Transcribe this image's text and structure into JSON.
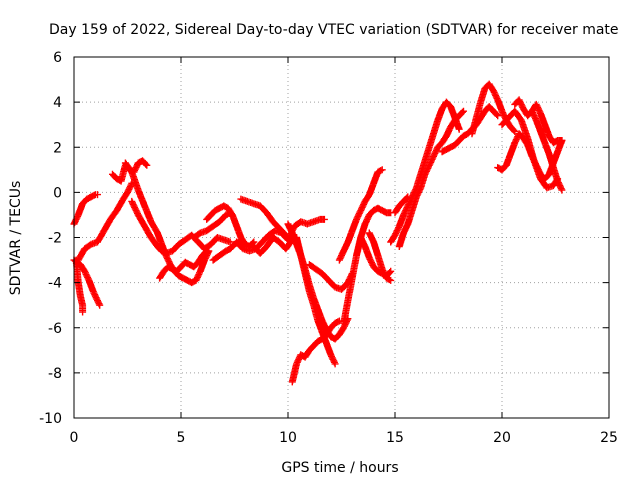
{
  "chart_data": {
    "type": "scatter",
    "title": "Day 159 of 2022, Sidereal Day-to-day VTEC variation (SDTVAR) for receiver mate",
    "xlabel": "GPS time / hours",
    "ylabel": "SDTVAR / TECUs",
    "xlim": [
      0,
      25
    ],
    "ylim": [
      -10,
      6
    ],
    "xticks": [
      0,
      5,
      10,
      15,
      20,
      25
    ],
    "yticks": [
      -10,
      -8,
      -6,
      -4,
      -2,
      0,
      2,
      4,
      6
    ],
    "xtick_labels": [
      "0",
      "5",
      "10",
      "15",
      "20",
      "25"
    ],
    "ytick_labels": [
      "-10",
      "-8",
      "-6",
      "-4",
      "-2",
      "0",
      "2",
      "4",
      "6"
    ],
    "grid": true,
    "legend": "none",
    "marker": "+",
    "color": "#ff0000",
    "series": [
      {
        "name": "s1",
        "x": [
          0.0,
          0.2,
          0.4,
          0.6,
          0.8,
          1.0,
          1.1
        ],
        "y": [
          -1.4,
          -1.0,
          -0.5,
          -0.3,
          -0.2,
          -0.1,
          -0.1
        ]
      },
      {
        "name": "s2",
        "x": [
          0.1,
          0.2,
          0.3,
          0.4,
          0.4
        ],
        "y": [
          -3.0,
          -4.0,
          -4.6,
          -5.0,
          -5.3
        ]
      },
      {
        "name": "s3",
        "x": [
          0.0,
          0.3,
          0.5,
          0.7,
          0.9,
          1.1,
          1.2
        ],
        "y": [
          -3.0,
          -3.2,
          -3.5,
          -3.9,
          -4.4,
          -4.8,
          -5.0
        ]
      },
      {
        "name": "s4",
        "x": [
          0.2,
          0.5,
          0.8,
          1.1,
          1.4,
          1.7,
          2.0,
          2.3,
          2.5,
          2.7
        ],
        "y": [
          -3.0,
          -2.5,
          -2.3,
          -2.2,
          -1.7,
          -1.2,
          -0.8,
          -0.3,
          0.0,
          0.4
        ]
      },
      {
        "name": "s5",
        "x": [
          1.8,
          2.0,
          2.2,
          2.4,
          2.6,
          2.8,
          3.0,
          3.2,
          3.4
        ],
        "y": [
          0.8,
          0.6,
          0.5,
          1.2,
          1.0,
          0.9,
          1.3,
          1.4,
          1.2
        ]
      },
      {
        "name": "s6",
        "x": [
          2.4,
          2.7,
          3.0,
          3.3,
          3.6,
          3.9,
          4.1,
          4.3,
          4.5,
          4.7,
          4.9,
          5.1,
          5.3,
          5.5,
          5.7,
          5.9,
          6.1,
          6.3
        ],
        "y": [
          1.3,
          0.9,
          0.1,
          -0.6,
          -1.3,
          -1.8,
          -2.3,
          -2.8,
          -3.2,
          -3.5,
          -3.7,
          -3.8,
          -3.9,
          -4.0,
          -3.9,
          -3.5,
          -3.0,
          -2.6
        ]
      },
      {
        "name": "s7",
        "x": [
          2.7,
          3.0,
          3.3,
          3.6,
          3.9,
          4.1,
          4.3,
          4.6,
          4.9,
          5.2,
          5.5,
          5.8,
          6.1,
          6.4,
          6.7,
          7.0,
          7.3
        ],
        "y": [
          -0.4,
          -1.0,
          -1.5,
          -2.0,
          -2.4,
          -2.6,
          -2.7,
          -2.6,
          -2.3,
          -2.1,
          -1.9,
          -2.2,
          -2.5,
          -2.3,
          -2.0,
          -2.1,
          -2.2
        ]
      },
      {
        "name": "s8",
        "x": [
          4.0,
          4.2,
          4.4,
          4.6,
          4.8,
          5.0,
          5.2,
          5.4,
          5.6,
          5.8,
          6.0,
          6.2
        ],
        "y": [
          -3.8,
          -3.5,
          -3.3,
          -3.4,
          -3.5,
          -3.3,
          -3.1,
          -3.2,
          -3.3,
          -3.1,
          -2.8,
          -2.6
        ]
      },
      {
        "name": "s9",
        "x": [
          5.6,
          5.9,
          6.2,
          6.5,
          6.8,
          7.1,
          7.3
        ],
        "y": [
          -2.0,
          -1.8,
          -1.7,
          -1.5,
          -1.3,
          -1.0,
          -0.9
        ]
      },
      {
        "name": "s10",
        "x": [
          6.2,
          6.4,
          6.6,
          6.8,
          7.0,
          7.2,
          7.4,
          7.6,
          7.8,
          8.0,
          8.2,
          8.4
        ],
        "y": [
          -1.2,
          -1.0,
          -0.8,
          -0.7,
          -0.6,
          -0.7,
          -1.0,
          -1.5,
          -2.0,
          -2.3,
          -2.4,
          -2.2
        ]
      },
      {
        "name": "s11",
        "x": [
          6.5,
          6.8,
          7.1,
          7.3,
          7.5,
          7.7,
          7.9
        ],
        "y": [
          -3.0,
          -2.8,
          -2.6,
          -2.5,
          -2.3,
          -2.2,
          -2.3
        ]
      },
      {
        "name": "s12",
        "x": [
          7.8,
          8.1,
          8.4,
          8.7,
          9.0,
          9.3,
          9.6,
          9.9
        ],
        "y": [
          -0.3,
          -0.4,
          -0.5,
          -0.6,
          -0.9,
          -1.3,
          -1.6,
          -1.9
        ]
      },
      {
        "name": "s13",
        "x": [
          7.6,
          7.9,
          8.2,
          8.5,
          8.8,
          9.1,
          9.4,
          9.7,
          10.0,
          10.3,
          10.6,
          10.9,
          11.2,
          11.5,
          11.7
        ],
        "y": [
          -2.2,
          -2.5,
          -2.6,
          -2.5,
          -2.2,
          -1.9,
          -1.7,
          -1.8,
          -2.1,
          -1.5,
          -1.3,
          -1.4,
          -1.3,
          -1.2,
          -1.2
        ]
      },
      {
        "name": "s14",
        "x": [
          8.4,
          8.7,
          9.0,
          9.3,
          9.6,
          9.9,
          10.2
        ],
        "y": [
          -2.4,
          -2.7,
          -2.4,
          -2.0,
          -2.2,
          -2.5,
          -2.1
        ]
      },
      {
        "name": "s15",
        "x": [
          10.0,
          10.2,
          10.4,
          10.6,
          10.8,
          11.0,
          11.2,
          11.4,
          11.6,
          11.8,
          12.0,
          12.2,
          12.4,
          12.6,
          12.8
        ],
        "y": [
          -1.4,
          -1.8,
          -2.3,
          -2.8,
          -3.4,
          -4.1,
          -4.7,
          -5.2,
          -5.7,
          -6.1,
          -6.4,
          -6.5,
          -6.3,
          -6.0,
          -5.6
        ]
      },
      {
        "name": "s16",
        "x": [
          10.4,
          10.6,
          10.8,
          11.0,
          11.2,
          11.4,
          11.6,
          11.8,
          12.0,
          12.1,
          12.2
        ],
        "y": [
          -2.0,
          -2.8,
          -3.6,
          -4.4,
          -5.0,
          -5.7,
          -6.2,
          -6.7,
          -7.2,
          -7.4,
          -7.6
        ]
      },
      {
        "name": "s17",
        "x": [
          10.2,
          10.4,
          10.6,
          10.8,
          11.0,
          11.2,
          11.4,
          11.6,
          11.8,
          12.0,
          12.2,
          12.4
        ],
        "y": [
          -8.4,
          -7.6,
          -7.2,
          -7.3,
          -7.0,
          -6.8,
          -6.6,
          -6.5,
          -6.3,
          -6.0,
          -5.8,
          -5.7
        ]
      },
      {
        "name": "s18",
        "x": [
          11.0,
          11.3,
          11.6,
          11.9,
          12.2,
          12.5,
          12.8,
          13.0
        ],
        "y": [
          -3.2,
          -3.4,
          -3.6,
          -3.9,
          -4.2,
          -4.3,
          -4.0,
          -3.6
        ]
      },
      {
        "name": "s19",
        "x": [
          12.4,
          12.6,
          12.8,
          13.0,
          13.2,
          13.4,
          13.6,
          13.8,
          14.0,
          14.2,
          14.4
        ],
        "y": [
          -3.0,
          -2.6,
          -2.2,
          -1.7,
          -1.2,
          -0.8,
          -0.4,
          -0.1,
          0.4,
          0.9,
          1.0
        ]
      },
      {
        "name": "s20",
        "x": [
          12.6,
          12.8,
          13.0,
          13.2,
          13.4,
          13.6,
          13.8,
          14.0,
          14.2,
          14.4,
          14.6,
          14.8
        ],
        "y": [
          -5.8,
          -4.8,
          -3.8,
          -2.8,
          -2.0,
          -1.4,
          -1.0,
          -0.8,
          -0.7,
          -0.8,
          -0.9,
          -0.9
        ]
      },
      {
        "name": "s21",
        "x": [
          13.4,
          13.6,
          13.8,
          14.0,
          14.2,
          14.4,
          14.6,
          14.8
        ],
        "y": [
          -2.0,
          -2.4,
          -2.9,
          -3.3,
          -3.5,
          -3.6,
          -3.7,
          -3.5
        ]
      },
      {
        "name": "s22",
        "x": [
          13.8,
          14.0,
          14.2,
          14.4,
          14.6,
          14.8
        ],
        "y": [
          -1.8,
          -2.2,
          -2.8,
          -3.4,
          -3.8,
          -3.9
        ]
      },
      {
        "name": "s23",
        "x": [
          14.8,
          15.0,
          15.2,
          15.4,
          15.6,
          15.8,
          16.0,
          16.2,
          16.4,
          16.6,
          16.8,
          17.0,
          17.2,
          17.4,
          17.6,
          17.8,
          18.0
        ],
        "y": [
          -2.2,
          -1.9,
          -1.5,
          -1.0,
          -0.6,
          -0.2,
          0.2,
          0.8,
          1.4,
          2.0,
          2.6,
          3.2,
          3.7,
          4.0,
          3.8,
          3.3,
          2.8
        ]
      },
      {
        "name": "s24",
        "x": [
          15.2,
          15.4,
          15.6,
          15.8,
          16.0,
          16.2,
          16.4,
          16.6,
          16.8,
          17.0,
          17.2,
          17.4,
          17.6,
          17.8,
          18.0,
          18.2
        ],
        "y": [
          -2.4,
          -1.8,
          -1.4,
          -0.8,
          -0.2,
          0.2,
          0.8,
          1.2,
          1.6,
          2.0,
          2.2,
          2.5,
          2.9,
          3.2,
          3.4,
          3.6
        ]
      },
      {
        "name": "s25",
        "x": [
          15.0,
          15.2,
          15.4,
          15.6
        ],
        "y": [
          -0.9,
          -0.6,
          -0.4,
          -0.2
        ]
      },
      {
        "name": "s26",
        "x": [
          17.2,
          17.4,
          17.6,
          17.8,
          18.0,
          18.2,
          18.4,
          18.6,
          18.8,
          19.0,
          19.2,
          19.4,
          19.6,
          19.8
        ],
        "y": [
          1.8,
          1.9,
          2.0,
          2.1,
          2.3,
          2.5,
          2.6,
          2.8,
          3.0,
          3.3,
          3.6,
          3.8,
          3.6,
          3.4
        ]
      },
      {
        "name": "s27",
        "x": [
          18.6,
          18.8,
          19.0,
          19.2,
          19.4,
          19.6,
          19.8,
          20.0,
          20.2,
          20.4,
          20.6
        ],
        "y": [
          2.6,
          3.3,
          4.0,
          4.6,
          4.8,
          4.5,
          4.1,
          3.6,
          3.2,
          2.9,
          2.7
        ]
      },
      {
        "name": "s28",
        "x": [
          19.8,
          20.0,
          20.2,
          20.4,
          20.6,
          20.8,
          21.0,
          21.2,
          21.4,
          21.6,
          21.8,
          22.0,
          22.2,
          22.4,
          22.6,
          22.8
        ],
        "y": [
          1.1,
          1.0,
          1.2,
          1.7,
          2.2,
          2.6,
          2.4,
          2.1,
          1.6,
          1.2,
          0.8,
          0.6,
          0.8,
          1.3,
          1.8,
          2.3
        ]
      },
      {
        "name": "s29",
        "x": [
          20.6,
          20.8,
          21.0,
          21.2,
          21.4,
          21.6,
          21.8,
          22.0,
          22.2,
          22.4,
          22.6,
          22.8
        ],
        "y": [
          3.9,
          4.1,
          3.7,
          3.4,
          3.6,
          3.9,
          3.5,
          3.0,
          2.5,
          2.2,
          2.3,
          2.3
        ]
      },
      {
        "name": "s30",
        "x": [
          20.0,
          20.3,
          20.6,
          20.9,
          21.2,
          21.5,
          21.8,
          22.1,
          22.4,
          22.6
        ],
        "y": [
          3.0,
          3.3,
          3.6,
          3.2,
          2.4,
          1.4,
          0.6,
          0.2,
          0.3,
          0.6
        ]
      },
      {
        "name": "s31",
        "x": [
          21.4,
          21.6,
          21.8,
          22.0,
          22.2,
          22.4,
          22.6,
          22.8
        ],
        "y": [
          3.6,
          3.2,
          2.7,
          2.2,
          1.7,
          1.1,
          0.5,
          0.1
        ]
      }
    ]
  }
}
